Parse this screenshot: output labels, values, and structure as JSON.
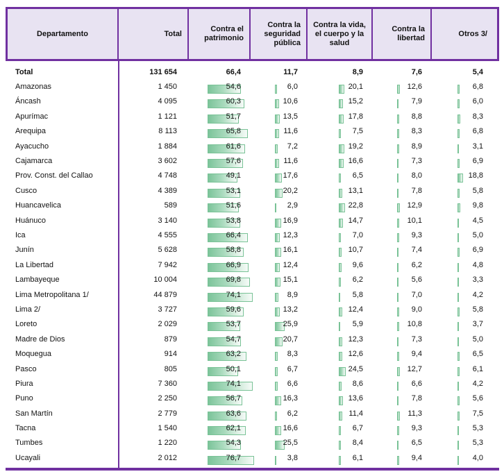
{
  "colors": {
    "header_border_purple": "#7030a0",
    "header_fill_lavender": "#e8e3f2",
    "bar_green": "#7cc49a",
    "bar_green_border": "#79c296",
    "text": "#111111"
  },
  "chart_data": {
    "type": "table",
    "columns": [
      "Departamento",
      "Total",
      "Contra el patrimonio",
      "Contra la seguridad pública",
      "Contra la vida, el cuerpo y la salud",
      "Contra la libertad",
      "Otros 3/"
    ],
    "pct_column_keys": [
      "patrimonio",
      "seguridad-publica",
      "vida-cuerpo-salud",
      "libertad",
      "otros"
    ],
    "bar_style": "green gradient data bars, length proportional to percentage (0-100 scale per column)",
    "total_row": {
      "name": "Total",
      "total": "131 654",
      "values": [
        "66,4",
        "11,7",
        "8,9",
        "7,6",
        "5,4"
      ]
    },
    "rows": [
      {
        "name": "Amazonas",
        "total": "1 450",
        "values": [
          "54,6",
          "6,0",
          "20,1",
          "12,6",
          "6,8"
        ]
      },
      {
        "name": "Áncash",
        "total": "4 095",
        "values": [
          "60,3",
          "10,6",
          "15,2",
          "7,9",
          "6,0"
        ]
      },
      {
        "name": "Apurímac",
        "total": "1 121",
        "values": [
          "51,7",
          "13,5",
          "17,8",
          "8,8",
          "8,3"
        ]
      },
      {
        "name": "Arequipa",
        "total": "8 113",
        "values": [
          "65,8",
          "11,6",
          "7,5",
          "8,3",
          "6,8"
        ]
      },
      {
        "name": "Ayacucho",
        "total": "1 884",
        "values": [
          "61,6",
          "7,2",
          "19,2",
          "8,9",
          "3,1"
        ]
      },
      {
        "name": "Cajamarca",
        "total": "3 602",
        "values": [
          "57,6",
          "11,6",
          "16,6",
          "7,3",
          "6,9"
        ]
      },
      {
        "name": "Prov. Const. del Callao",
        "total": "4 748",
        "values": [
          "49,1",
          "17,6",
          "6,5",
          "8,0",
          "18,8"
        ]
      },
      {
        "name": "Cusco",
        "total": "4 389",
        "values": [
          "53,1",
          "20,2",
          "13,1",
          "7,8",
          "5,8"
        ]
      },
      {
        "name": "Huancavelica",
        "total": "589",
        "values": [
          "51,6",
          "2,9",
          "22,8",
          "12,9",
          "9,8"
        ]
      },
      {
        "name": "Huánuco",
        "total": "3 140",
        "values": [
          "53,8",
          "16,9",
          "14,7",
          "10,1",
          "4,5"
        ]
      },
      {
        "name": "Ica",
        "total": "4 555",
        "values": [
          "66,4",
          "12,3",
          "7,0",
          "9,3",
          "5,0"
        ]
      },
      {
        "name": "Junín",
        "total": "5 628",
        "values": [
          "58,8",
          "16,1",
          "10,7",
          "7,4",
          "6,9"
        ]
      },
      {
        "name": "La Libertad",
        "total": "7 942",
        "values": [
          "66,9",
          "12,4",
          "9,6",
          "6,2",
          "4,8"
        ]
      },
      {
        "name": "Lambayeque",
        "total": "10 004",
        "values": [
          "69,8",
          "15,1",
          "6,2",
          "5,6",
          "3,3"
        ]
      },
      {
        "name": "Lima Metropolitana 1/",
        "total": "44 879",
        "values": [
          "74,1",
          "8,9",
          "5,8",
          "7,0",
          "4,2"
        ]
      },
      {
        "name": "Lima 2/",
        "total": "3 727",
        "values": [
          "59,6",
          "13,2",
          "12,4",
          "9,0",
          "5,8"
        ]
      },
      {
        "name": "Loreto",
        "total": "2 029",
        "values": [
          "53,7",
          "25,9",
          "5,9",
          "10,8",
          "3,7"
        ]
      },
      {
        "name": "Madre de Dios",
        "total": "879",
        "values": [
          "54,7",
          "20,7",
          "12,3",
          "7,3",
          "5,0"
        ]
      },
      {
        "name": "Moquegua",
        "total": "914",
        "values": [
          "63,2",
          "8,3",
          "12,6",
          "9,4",
          "6,5"
        ]
      },
      {
        "name": "Pasco",
        "total": "805",
        "values": [
          "50,1",
          "6,7",
          "24,5",
          "12,7",
          "6,1"
        ]
      },
      {
        "name": "Piura",
        "total": "7 360",
        "values": [
          "74,1",
          "6,6",
          "8,6",
          "6,6",
          "4,2"
        ]
      },
      {
        "name": "Puno",
        "total": "2 250",
        "values": [
          "56,7",
          "16,3",
          "13,6",
          "7,8",
          "5,6"
        ]
      },
      {
        "name": "San Martín",
        "total": "2 779",
        "values": [
          "63,6",
          "6,2",
          "11,4",
          "11,3",
          "7,5"
        ]
      },
      {
        "name": "Tacna",
        "total": "1 540",
        "values": [
          "62,1",
          "16,6",
          "6,7",
          "9,3",
          "5,3"
        ]
      },
      {
        "name": "Tumbes",
        "total": "1 220",
        "values": [
          "54,3",
          "25,5",
          "8,4",
          "6,5",
          "5,3"
        ]
      },
      {
        "name": "Ucayali",
        "total": "2 012",
        "values": [
          "76,7",
          "3,8",
          "6,1",
          "9,4",
          "4,0"
        ]
      }
    ]
  }
}
